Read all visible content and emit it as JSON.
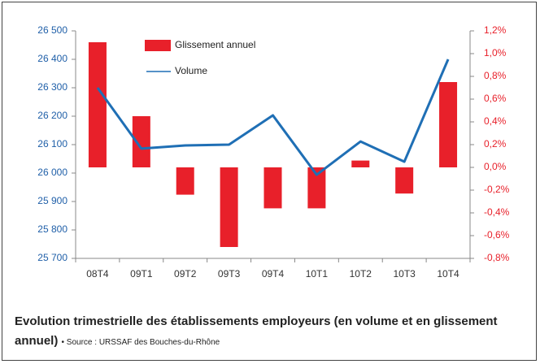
{
  "chart_data": {
    "type": "bar_line",
    "categories": [
      "08T4",
      "09T1",
      "09T2",
      "09T3",
      "09T4",
      "10T1",
      "10T2",
      "10T3",
      "10T4"
    ],
    "series": [
      {
        "name": "Glissement annuel",
        "type": "bar",
        "axis": "y2",
        "color": "#e8202a",
        "values": [
          1.1,
          0.45,
          -0.24,
          -0.7,
          -0.36,
          -0.36,
          0.06,
          -0.23,
          0.75
        ]
      },
      {
        "name": "Volume",
        "type": "line",
        "axis": "y",
        "color": "#1f6fb5",
        "values": [
          26300,
          26086,
          26097,
          26100,
          26203,
          25994,
          26111,
          26040,
          26400
        ]
      }
    ],
    "ylim": [
      25700,
      26500
    ],
    "yticks": [
      {
        "value": 25700,
        "label": "25 700"
      },
      {
        "value": 25800,
        "label": "25 800"
      },
      {
        "value": 25900,
        "label": "25 900"
      },
      {
        "value": 26000,
        "label": "26 000"
      },
      {
        "value": 26100,
        "label": "26 100"
      },
      {
        "value": 26200,
        "label": "26 200"
      },
      {
        "value": 26300,
        "label": "26 300"
      },
      {
        "value": 26400,
        "label": "26 400"
      },
      {
        "value": 26500,
        "label": "26 500"
      }
    ],
    "y2lim": [
      -0.8,
      1.2
    ],
    "y2ticks": [
      {
        "value": -0.8,
        "label": "-0,8%"
      },
      {
        "value": -0.6,
        "label": "-0,6%"
      },
      {
        "value": -0.4,
        "label": "-0,4%"
      },
      {
        "value": -0.2,
        "label": "-0,2%"
      },
      {
        "value": 0,
        "label": "0,0%"
      },
      {
        "value": 0.2,
        "label": "0,2%"
      },
      {
        "value": 0.4,
        "label": "0,4%"
      },
      {
        "value": 0.6,
        "label": "0,6%"
      },
      {
        "value": 0.8,
        "label": "0,8%"
      },
      {
        "value": 1.0,
        "label": "1,0%"
      },
      {
        "value": 1.2,
        "label": "1,2%"
      }
    ],
    "grid": false,
    "caption": "Evolution trimestrielle des établissements employeurs (en volume et en glissement annuel)",
    "source": "• Source : URSSAF des Bouches-du-Rhône"
  }
}
